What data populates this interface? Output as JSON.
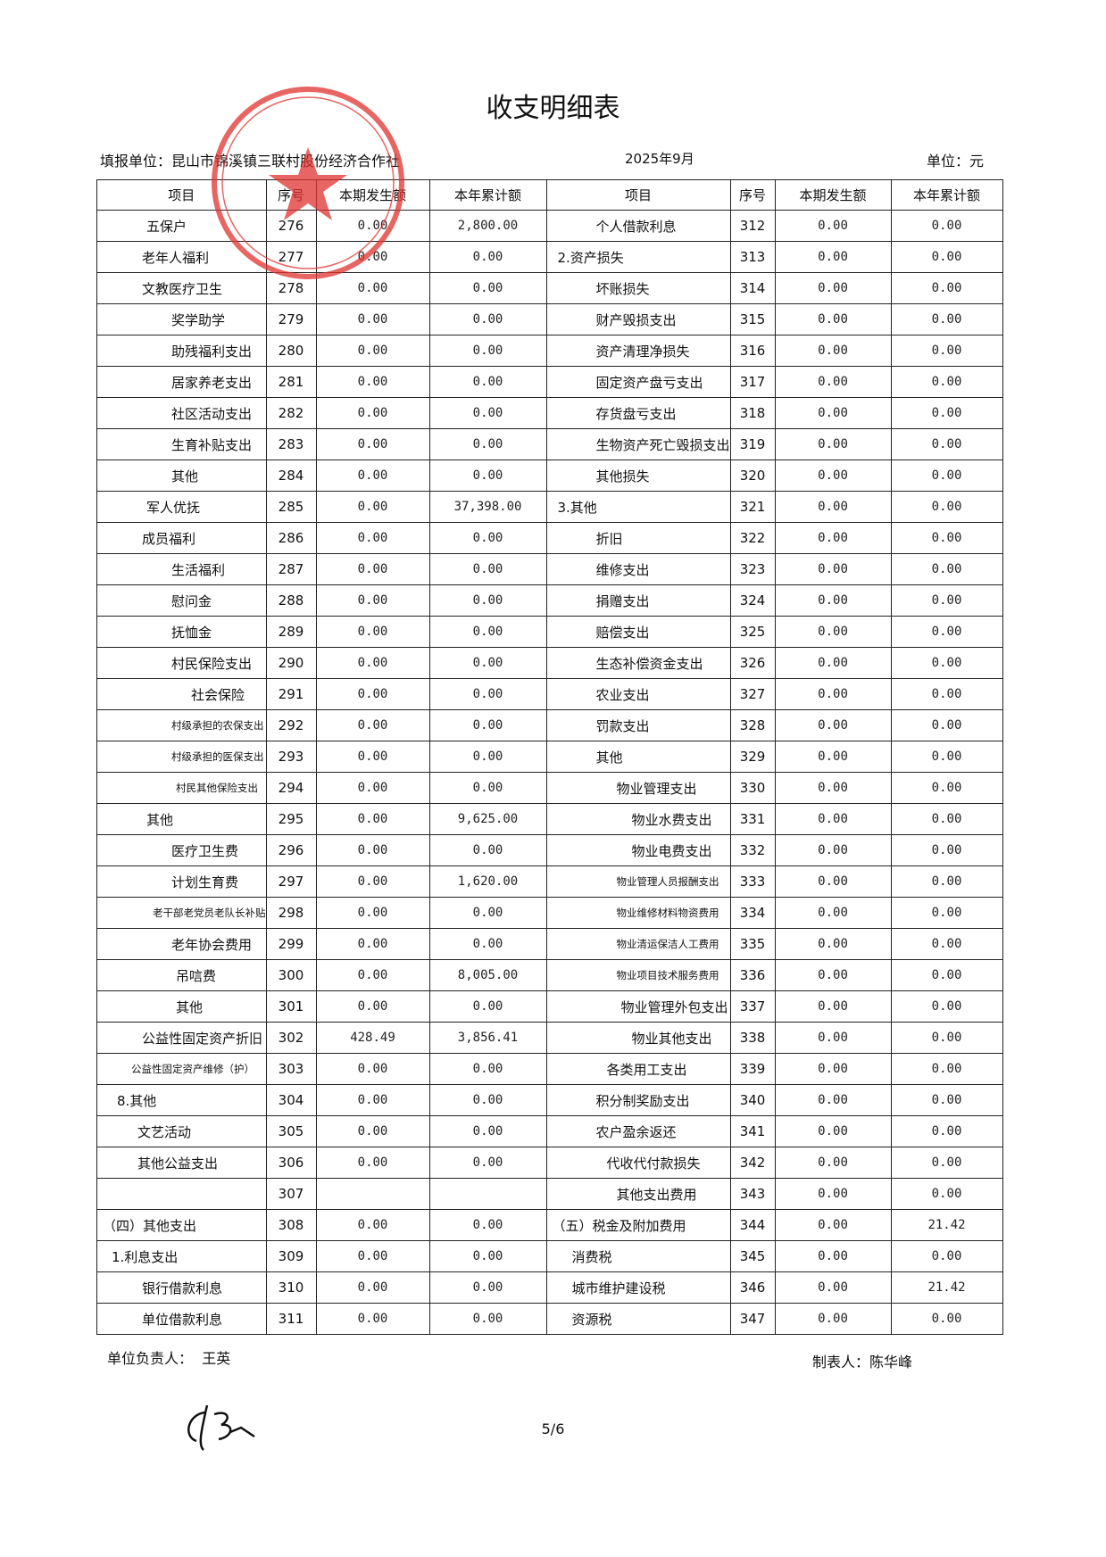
{
  "title": "收支明细表",
  "header": {
    "unit_label": "填报单位：昆山市锦溪镇三联村股份经济合作社",
    "period": "2025年9月",
    "currency": "单位：元"
  },
  "table": {
    "columns": [
      "项目",
      "序号",
      "本期发生额",
      "本年累计额",
      "项目",
      "序号",
      "本期发生额",
      "本年累计额"
    ],
    "rows": [
      [
        "五保户",
        "276",
        "0.00",
        "2,800.00",
        "个人借款利息",
        "312",
        "0.00",
        "0.00"
      ],
      [
        "老年人福利",
        "277",
        "0.00",
        "0.00",
        "2.资产损失",
        "313",
        "0.00",
        "0.00"
      ],
      [
        "文教医疗卫生",
        "278",
        "0.00",
        "0.00",
        "坏账损失",
        "314",
        "0.00",
        "0.00"
      ],
      [
        "奖学助学",
        "279",
        "0.00",
        "0.00",
        "财产毁损支出",
        "315",
        "0.00",
        "0.00"
      ],
      [
        "助残福利支出",
        "280",
        "0.00",
        "0.00",
        "资产清理净损失",
        "316",
        "0.00",
        "0.00"
      ],
      [
        "居家养老支出",
        "281",
        "0.00",
        "0.00",
        "固定资产盘亏支出",
        "317",
        "0.00",
        "0.00"
      ],
      [
        "社区活动支出",
        "282",
        "0.00",
        "0.00",
        "存货盘亏支出",
        "318",
        "0.00",
        "0.00"
      ],
      [
        "生育补贴支出",
        "283",
        "0.00",
        "0.00",
        "生物资产死亡毁损支出",
        "319",
        "0.00",
        "0.00"
      ],
      [
        "其他",
        "284",
        "0.00",
        "0.00",
        "其他损失",
        "320",
        "0.00",
        "0.00"
      ],
      [
        "军人优抚",
        "285",
        "0.00",
        "37,398.00",
        "3.其他",
        "321",
        "0.00",
        "0.00"
      ],
      [
        "成员福利",
        "286",
        "0.00",
        "0.00",
        "折旧",
        "322",
        "0.00",
        "0.00"
      ],
      [
        "生活福利",
        "287",
        "0.00",
        "0.00",
        "维修支出",
        "323",
        "0.00",
        "0.00"
      ],
      [
        "慰问金",
        "288",
        "0.00",
        "0.00",
        "捐赠支出",
        "324",
        "0.00",
        "0.00"
      ],
      [
        "抚恤金",
        "289",
        "0.00",
        "0.00",
        "赔偿支出",
        "325",
        "0.00",
        "0.00"
      ],
      [
        "村民保险支出",
        "290",
        "0.00",
        "0.00",
        "生态补偿资金支出",
        "326",
        "0.00",
        "0.00"
      ],
      [
        "社会保险",
        "291",
        "0.00",
        "0.00",
        "农业支出",
        "327",
        "0.00",
        "0.00"
      ],
      [
        "村级承担的农保支出",
        "292",
        "0.00",
        "0.00",
        "罚款支出",
        "328",
        "0.00",
        "0.00"
      ],
      [
        "村级承担的医保支出",
        "293",
        "0.00",
        "0.00",
        "其他",
        "329",
        "0.00",
        "0.00"
      ],
      [
        "村民其他保险支出",
        "294",
        "0.00",
        "0.00",
        "物业管理支出",
        "330",
        "0.00",
        "0.00"
      ],
      [
        "其他",
        "295",
        "0.00",
        "9,625.00",
        "物业水费支出",
        "331",
        "0.00",
        "0.00"
      ],
      [
        "医疗卫生费",
        "296",
        "0.00",
        "0.00",
        "物业电费支出",
        "332",
        "0.00",
        "0.00"
      ],
      [
        "计划生育费",
        "297",
        "0.00",
        "1,620.00",
        "物业管理人员报酬支出",
        "333",
        "0.00",
        "0.00"
      ],
      [
        "老干部老党员老队长补贴",
        "298",
        "0.00",
        "0.00",
        "物业维修材料物资费用",
        "334",
        "0.00",
        "0.00"
      ],
      [
        "老年协会费用",
        "299",
        "0.00",
        "0.00",
        "物业清运保洁人工费用",
        "335",
        "0.00",
        "0.00"
      ],
      [
        "吊唁费",
        "300",
        "0.00",
        "8,005.00",
        "物业项目技术服务费用",
        "336",
        "0.00",
        "0.00"
      ],
      [
        "其他",
        "301",
        "0.00",
        "0.00",
        "物业管理外包支出",
        "337",
        "0.00",
        "0.00"
      ],
      [
        "公益性固定资产折旧",
        "302",
        "428.49",
        "3,856.41",
        "物业其他支出",
        "338",
        "0.00",
        "0.00"
      ],
      [
        "公益性固定资产维修（护）",
        "303",
        "0.00",
        "0.00",
        "各类用工支出",
        "339",
        "0.00",
        "0.00"
      ],
      [
        "8.其他",
        "304",
        "0.00",
        "0.00",
        "积分制奖励支出",
        "340",
        "0.00",
        "0.00"
      ],
      [
        "文艺活动",
        "305",
        "0.00",
        "0.00",
        "农户盈余返还",
        "341",
        "0.00",
        "0.00"
      ],
      [
        "其他公益支出",
        "306",
        "0.00",
        "0.00",
        "代收代付款损失",
        "342",
        "0.00",
        "0.00"
      ],
      [
        null,
        "307",
        null,
        null,
        "其他支出费用",
        "343",
        "0.00",
        "0.00"
      ],
      [
        "（四）其他支出",
        "308",
        "0.00",
        "0.00",
        "（五）税金及附加费用",
        "344",
        "0.00",
        "21.42"
      ],
      [
        "1.利息支出",
        "309",
        "0.00",
        "0.00",
        "消费税",
        "345",
        "0.00",
        "0.00"
      ],
      [
        "银行借款利息",
        "310",
        "0.00",
        "0.00",
        "城市维护建设税",
        "346",
        "0.00",
        "21.42"
      ],
      [
        "单位借款利息",
        "311",
        "0.00",
        "0.00",
        "资源税",
        "347",
        "0.00",
        "0.00"
      ]
    ]
  },
  "footer": {
    "leader_label": "单位负责人：",
    "leader": "王英",
    "preparer_label": "制表人：",
    "preparer": "陈华峰"
  },
  "page_number": "5/6"
}
